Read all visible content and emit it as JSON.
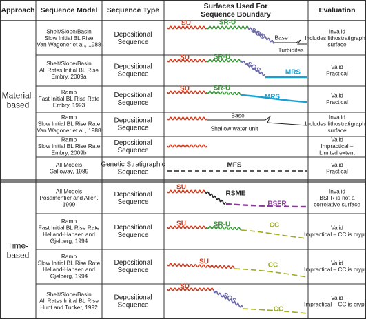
{
  "header": {
    "approach": "Approach",
    "model": "Sequence Model",
    "type": "Sequence Type",
    "surfaces": [
      "Surfaces Used For",
      "Sequence Boundary"
    ],
    "evaluation": "Evaluation"
  },
  "groups": [
    {
      "approach": [
        "Material-",
        "based"
      ],
      "rows": [
        {
          "model": [
            "Shelf/Slope/Basin",
            "Slow Initial BL Rise",
            "Van Wagoner et al., 1988"
          ],
          "type": [
            "Depositional",
            "Sequence"
          ],
          "surfaces": [
            "SU",
            "SR-U",
            "SOS",
            "Base",
            "Turbidites"
          ],
          "evaluation": [
            "Invalid",
            "Includes lithostratigraphic",
            "surface"
          ]
        },
        {
          "model": [
            "Shelf/Slope/Basin",
            "All Rates Initial BL Rise",
            "Embry, 2009a"
          ],
          "type": [
            "Depositional",
            "Sequence"
          ],
          "surfaces": [
            "SU",
            "SR-U",
            "SOS",
            "MRS"
          ],
          "evaluation": [
            "Valid",
            "Practical"
          ]
        },
        {
          "model": [
            "Ramp",
            "Fast Initial BL Rise Rate",
            "Embry, 1993"
          ],
          "type": [
            "Depositional",
            "Sequence"
          ],
          "surfaces": [
            "SU",
            "SR-U",
            "MRS"
          ],
          "evaluation": [
            "Valid",
            "Practical"
          ]
        },
        {
          "model": [
            "Ramp",
            "Slow Initial BL Rise Rate",
            "Van Wagoner et al., 1988"
          ],
          "type": [
            "Depositional",
            "Sequence"
          ],
          "surfaces": [
            "Base",
            "Shallow water unit"
          ],
          "evaluation": [
            "Invalid",
            "Includes lithostratigraphic",
            "surface"
          ]
        },
        {
          "model": [
            "Ramp",
            "Slow Initial BL Rise Rate",
            "Embry, 2009b"
          ],
          "type": [
            "Depositional",
            "Sequence"
          ],
          "evaluation": [
            "Valid",
            "Impractical –",
            "Limited extent"
          ]
        },
        {
          "model": [
            "All Models",
            "Galloway, 1989"
          ],
          "type": [
            "Genetic Stratigraphic",
            "Sequence"
          ],
          "surfaces": [
            "MFS"
          ],
          "evaluation": [
            "Valid",
            "Practical"
          ]
        }
      ]
    },
    {
      "approach": [
        "Time-",
        "based"
      ],
      "rows": [
        {
          "model": [
            "All Models",
            "Posamentier and Allen,",
            "1999"
          ],
          "type": [
            "Depositional",
            "Sequence"
          ],
          "surfaces": [
            "SU",
            "RSME",
            "BSFR"
          ],
          "evaluation": [
            "Invalid",
            "BSFR is not a",
            "correlative surface"
          ]
        },
        {
          "model": [
            "Ramp",
            "Fast Initial BL Rise Rate",
            "Helland-Hansen and",
            "Gjelberg, 1994"
          ],
          "type": [
            "Depositional",
            "Sequence"
          ],
          "surfaces": [
            "SU",
            "SR-U",
            "CC"
          ],
          "evaluation": [
            "Valid",
            "Impractical – CC is cryptic"
          ]
        },
        {
          "model": [
            "Ramp",
            "Slow Initial BL Rise Rate",
            "Helland-Hansen and",
            "Gjelberg, 1994"
          ],
          "type": [
            "Depositional",
            "Sequence"
          ],
          "surfaces": [
            "SU",
            "CC"
          ],
          "evaluation": [
            "Valid",
            "Impractical – CC is cryptic"
          ]
        },
        {
          "model": [
            "Shelf/Slope/Basin",
            "All Rates Initial BL Rise",
            "Hunt and Tucker, 1992"
          ],
          "type": [
            "Depositional",
            "Sequence"
          ],
          "surfaces": [
            "SU",
            "SOS",
            "CC"
          ],
          "evaluation": [
            "Valid",
            "Impractical – CC is cryptic"
          ]
        }
      ]
    }
  ]
}
